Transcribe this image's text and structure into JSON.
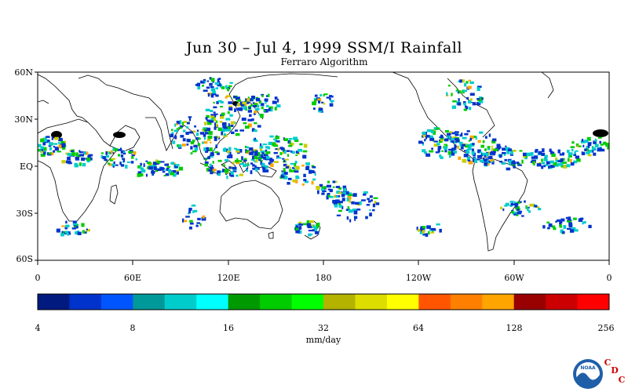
{
  "header": {
    "title": "Jun 30 – Jul 4, 1999 SSM/I Rainfall",
    "subtitle": "Ferraro Algorithm"
  },
  "map": {
    "lat_labels": [
      "60N",
      "30N",
      "EQ",
      "30S",
      "60S"
    ],
    "lon_labels": [
      "0",
      "60E",
      "120E",
      "180",
      "120W",
      "60W",
      "0"
    ],
    "lat_range": [
      -60,
      60
    ],
    "lon_range": [
      0,
      360
    ],
    "rain_colors": [
      "#0033cc",
      "#00cccc",
      "#00cc00",
      "#cccc00",
      "#ffa500"
    ]
  },
  "colorbar": {
    "unit": "mm/day",
    "tick_labels": [
      "4",
      "8",
      "16",
      "32",
      "64",
      "128",
      "256"
    ],
    "colors": [
      "#001a80",
      "#0033cc",
      "#0055ff",
      "#009999",
      "#00cccc",
      "#00ffff",
      "#009900",
      "#00cc00",
      "#00ff00",
      "#b3b300",
      "#dddd00",
      "#ffff00",
      "#ff5500",
      "#ff8000",
      "#ffa500",
      "#990000",
      "#cc0000",
      "#ff0000"
    ]
  },
  "logo": {
    "text": "NOAA",
    "cdc_letters": [
      "C",
      "D",
      "C"
    ]
  }
}
